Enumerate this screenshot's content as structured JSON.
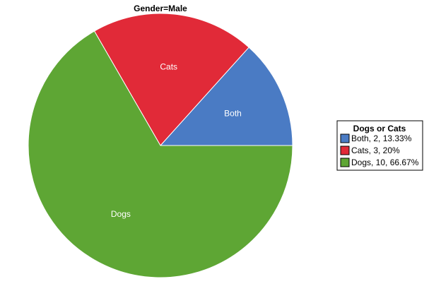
{
  "chart_data": {
    "type": "pie",
    "title": "Gender=Male",
    "categories": [
      "Both",
      "Cats",
      "Dogs"
    ],
    "values": [
      2,
      3,
      10
    ],
    "percentages": [
      "13.33%",
      "20%",
      "66.67%"
    ],
    "colors": [
      "#4a7bc4",
      "#e12a38",
      "#5ea634"
    ],
    "slice_labels": [
      "Both",
      "Cats",
      "Dogs"
    ],
    "legend": {
      "title": "Dogs or Cats",
      "placement": "right",
      "entries": [
        "Both, 2, 13.33%",
        "Cats, 3, 20%",
        "Dogs, 10, 66.67%"
      ]
    }
  }
}
